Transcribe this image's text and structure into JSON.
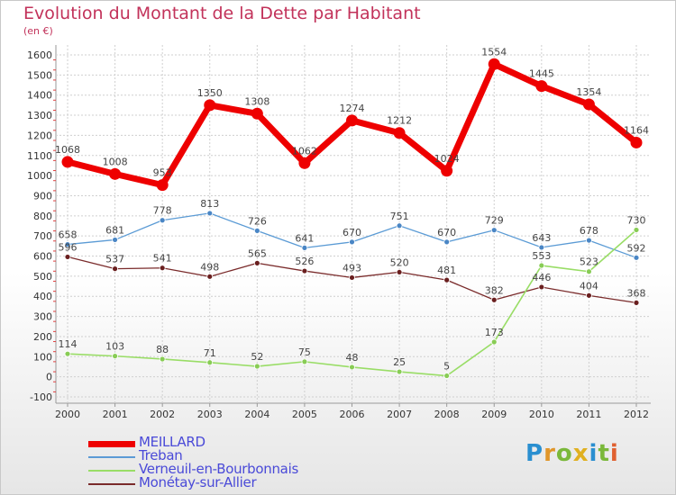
{
  "chart_data": {
    "type": "line",
    "title": "Evolution du Montant de la Dette par Habitant",
    "subtitle": "(en €)",
    "xlabel": "",
    "ylabel": "",
    "x": [
      "2000",
      "2001",
      "2002",
      "2003",
      "2004",
      "2005",
      "2006",
      "2007",
      "2008",
      "2009",
      "2010",
      "2011",
      "2012"
    ],
    "ylim": [
      -100,
      1600
    ],
    "yticks": [
      -100,
      0,
      100,
      200,
      300,
      400,
      500,
      600,
      700,
      800,
      900,
      1000,
      1100,
      1200,
      1300,
      1400,
      1500,
      1600
    ],
    "grid": true,
    "legend_position": "bottom-left",
    "series": [
      {
        "name": "MEILLARD",
        "color": "#ee0000",
        "values": [
          1068,
          1008,
          953,
          1350,
          1308,
          1062,
          1274,
          1212,
          1024,
          1554,
          1445,
          1354,
          1164
        ]
      },
      {
        "name": "Treban",
        "color": "#5b9bd5",
        "values": [
          658,
          681,
          778,
          813,
          726,
          641,
          670,
          751,
          670,
          729,
          643,
          678,
          592
        ]
      },
      {
        "name": "Verneuil-en-Bourbonnais",
        "color": "#99dd66",
        "values": [
          114,
          103,
          88,
          71,
          52,
          75,
          48,
          25,
          5,
          173,
          553,
          523,
          730
        ]
      },
      {
        "name": "Monétay-sur-Allier",
        "color": "#7a2b2b",
        "values": [
          596,
          537,
          541,
          498,
          565,
          526,
          493,
          520,
          481,
          382,
          446,
          404,
          368
        ]
      }
    ]
  },
  "logo": {
    "text": "Proxiti"
  }
}
